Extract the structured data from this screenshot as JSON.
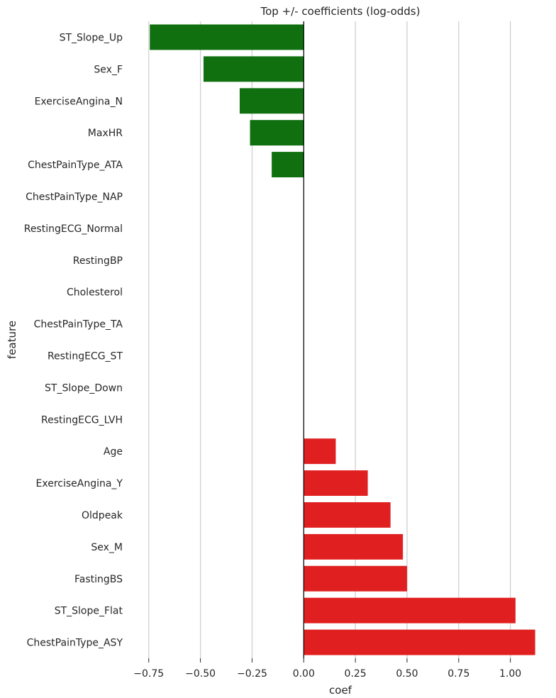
{
  "chart_data": {
    "type": "bar",
    "orientation": "horizontal",
    "title": "Top +/- coefficients (log-odds)",
    "xlabel": "coef",
    "ylabel": "feature",
    "xlim": [
      -0.835,
      1.19
    ],
    "xticks": [
      -0.75,
      -0.5,
      -0.25,
      0.0,
      0.25,
      0.5,
      0.75,
      1.0
    ],
    "xtick_labels": [
      "−0.75",
      "−0.50",
      "−0.25",
      "0.00",
      "0.25",
      "0.50",
      "0.75",
      "1.00"
    ],
    "grid": "vertical",
    "zero_line": true,
    "colors": {
      "negative": "#107010",
      "positive": "#e02020",
      "grid": "#d0d0d0",
      "axis": "#262626"
    },
    "categories": [
      "ST_Slope_Up",
      "Sex_F",
      "ExerciseAngina_N",
      "MaxHR",
      "ChestPainType_ATA",
      "ChestPainType_NAP",
      "RestingECG_Normal",
      "RestingBP",
      "Cholesterol",
      "ChestPainType_TA",
      "RestingECG_ST",
      "ST_Slope_Down",
      "RestingECG_LVH",
      "Age",
      "ExerciseAngina_Y",
      "Oldpeak",
      "Sex_M",
      "FastingBS",
      "ST_Slope_Flat",
      "ChestPainType_ASY"
    ],
    "values": [
      -0.745,
      -0.485,
      -0.31,
      -0.26,
      -0.155,
      0.0,
      0.0,
      0.0,
      0.0,
      0.0,
      0.0,
      0.0,
      0.0,
      0.155,
      0.31,
      0.42,
      0.48,
      0.5,
      1.025,
      1.12
    ]
  }
}
